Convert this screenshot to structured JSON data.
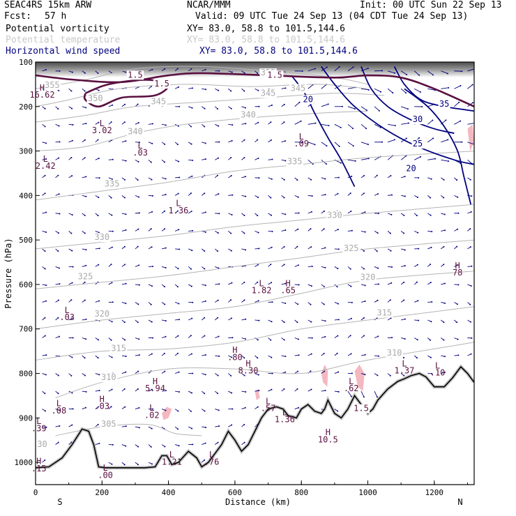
{
  "header": {
    "model": "SEAC4RS 15km ARW",
    "org": "NCAR/MMM",
    "init": "Init: 00 UTC Sun 22 Sep 13",
    "fcst_label": "Fcst:",
    "fcst_value": "57 h",
    "valid": "Valid: 09 UTC Tue 24 Sep 13 (04 CDT Tue 24 Sep 13)"
  },
  "fields": [
    {
      "name": "Potential vorticity",
      "xy": "XY=  83.0, 58.8 to 101.5,144.6",
      "color": "#000000"
    },
    {
      "name": "Potential temperature",
      "xy": "XY=  83.0, 58.8 to 101.5,144.6",
      "color": "#c8c8c8"
    },
    {
      "name": "Horizontal wind speed",
      "xy": "XY=  83.0, 58.8 to 101.5,144.6",
      "color": "#000080"
    }
  ],
  "colors": {
    "pv": "#5a1040",
    "theta": "#b4b4b4",
    "wind": "#000080",
    "terrain": "#000000",
    "pink": "#f4b8c0"
  },
  "chart_data": {
    "type": "cross-section",
    "xlabel": "Distance (km)",
    "ylabel": "Pressure (hPa)",
    "xlim": [
      0,
      1320
    ],
    "ylim": [
      1050,
      100
    ],
    "x_ticks": [
      "0",
      "200",
      "400",
      "600",
      "800",
      "1000",
      "1200"
    ],
    "x_tick_values": [
      0,
      200,
      400,
      600,
      800,
      1000,
      1200
    ],
    "y_ticks": [
      "100",
      "200",
      "300",
      "400",
      "500",
      "600",
      "700",
      "800",
      "900",
      "1000"
    ],
    "y_tick_values": [
      100,
      200,
      300,
      400,
      500,
      600,
      700,
      800,
      900,
      1000
    ],
    "end_left": "S",
    "end_right": "N",
    "terrain": [
      [
        0,
        1012
      ],
      [
        40,
        1010
      ],
      [
        80,
        990
      ],
      [
        110,
        960
      ],
      [
        140,
        925
      ],
      [
        160,
        930
      ],
      [
        175,
        960
      ],
      [
        190,
        1010
      ],
      [
        210,
        1012
      ],
      [
        260,
        1012
      ],
      [
        330,
        1012
      ],
      [
        360,
        1010
      ],
      [
        380,
        985
      ],
      [
        395,
        985
      ],
      [
        410,
        1005
      ],
      [
        430,
        1000
      ],
      [
        460,
        975
      ],
      [
        485,
        990
      ],
      [
        500,
        1010
      ],
      [
        520,
        1000
      ],
      [
        545,
        975
      ],
      [
        560,
        960
      ],
      [
        580,
        930
      ],
      [
        600,
        950
      ],
      [
        620,
        975
      ],
      [
        640,
        960
      ],
      [
        660,
        930
      ],
      [
        680,
        900
      ],
      [
        700,
        880
      ],
      [
        725,
        875
      ],
      [
        745,
        880
      ],
      [
        760,
        895
      ],
      [
        785,
        900
      ],
      [
        800,
        880
      ],
      [
        820,
        870
      ],
      [
        840,
        885
      ],
      [
        860,
        890
      ],
      [
        870,
        880
      ],
      [
        880,
        860
      ],
      [
        900,
        890
      ],
      [
        920,
        900
      ],
      [
        940,
        880
      ],
      [
        960,
        850
      ],
      [
        980,
        870
      ],
      [
        1000,
        890
      ],
      [
        1015,
        880
      ],
      [
        1030,
        860
      ],
      [
        1060,
        835
      ],
      [
        1090,
        818
      ],
      [
        1110,
        812
      ],
      [
        1130,
        805
      ],
      [
        1155,
        800
      ],
      [
        1175,
        808
      ],
      [
        1200,
        830
      ],
      [
        1230,
        830
      ],
      [
        1255,
        810
      ],
      [
        1280,
        785
      ],
      [
        1300,
        800
      ],
      [
        1320,
        820
      ]
    ],
    "theta_contours": [
      {
        "label": "355",
        "points": [
          [
            0,
            160
          ],
          [
            150,
            140
          ],
          [
            300,
            115
          ],
          [
            500,
            110
          ],
          [
            700,
            120
          ],
          [
            900,
            135
          ],
          [
            1000,
            150
          ]
        ]
      },
      {
        "label": "350",
        "points": [
          [
            0,
            200
          ],
          [
            100,
            185
          ],
          [
            250,
            160
          ],
          [
            450,
            150
          ],
          [
            650,
            155
          ],
          [
            850,
            150
          ],
          [
            1000,
            160
          ]
        ]
      },
      {
        "label": "345",
        "points": [
          [
            0,
            235
          ],
          [
            150,
            220
          ],
          [
            300,
            200
          ],
          [
            500,
            190
          ],
          [
            700,
            180
          ],
          [
            900,
            170
          ],
          [
            1050,
            175
          ]
        ]
      },
      {
        "label": "340",
        "points": [
          [
            0,
            300
          ],
          [
            150,
            290
          ],
          [
            300,
            260
          ],
          [
            450,
            240
          ],
          [
            650,
            225
          ],
          [
            850,
            215
          ],
          [
            1000,
            210
          ]
        ]
      },
      {
        "label": "335",
        "points": [
          [
            0,
            410
          ],
          [
            200,
            390
          ],
          [
            400,
            370
          ],
          [
            600,
            345
          ],
          [
            800,
            330
          ],
          [
            1000,
            315
          ],
          [
            1320,
            300
          ]
        ]
      },
      {
        "label": "330",
        "points": [
          [
            0,
            520
          ],
          [
            200,
            505
          ],
          [
            400,
            490
          ],
          [
            600,
            470
          ],
          [
            800,
            455
          ],
          [
            1000,
            440
          ],
          [
            1320,
            420
          ]
        ]
      },
      {
        "label": "325",
        "points": [
          [
            0,
            610
          ],
          [
            200,
            595
          ],
          [
            400,
            580
          ],
          [
            600,
            560
          ],
          [
            800,
            540
          ],
          [
            1000,
            520
          ],
          [
            1320,
            500
          ]
        ]
      },
      {
        "label": "320",
        "points": [
          [
            0,
            700
          ],
          [
            200,
            680
          ],
          [
            400,
            665
          ],
          [
            600,
            650
          ],
          [
            800,
            620
          ],
          [
            1000,
            590
          ],
          [
            1320,
            570
          ]
        ]
      },
      {
        "label": "315",
        "points": [
          [
            0,
            770
          ],
          [
            200,
            750
          ],
          [
            400,
            745
          ],
          [
            600,
            730
          ],
          [
            800,
            700
          ],
          [
            1000,
            680
          ],
          [
            1320,
            650
          ]
        ]
      },
      {
        "label": "310",
        "points": [
          [
            60,
            855
          ],
          [
            200,
            820
          ],
          [
            400,
            790
          ],
          [
            600,
            790
          ],
          [
            800,
            800
          ],
          [
            1000,
            770
          ],
          [
            1320,
            730
          ]
        ]
      },
      {
        "label": "305",
        "points": [
          [
            60,
            940
          ],
          [
            200,
            920
          ],
          [
            340,
            915
          ],
          [
            420,
            935
          ],
          [
            500,
            940
          ]
        ]
      }
    ],
    "wind_contours": [
      {
        "label": "20",
        "points": [
          [
            770,
            130
          ],
          [
            810,
            170
          ],
          [
            840,
            215
          ],
          [
            880,
            270
          ],
          [
            920,
            320
          ],
          [
            960,
            380
          ]
        ]
      },
      {
        "label": "25",
        "points": [
          [
            860,
            110
          ],
          [
            900,
            150
          ],
          [
            960,
            200
          ],
          [
            1050,
            250
          ],
          [
            1150,
            290
          ],
          [
            1260,
            320
          ],
          [
            1320,
            330
          ]
        ]
      },
      {
        "label": "30",
        "points": [
          [
            980,
            110
          ],
          [
            1010,
            160
          ],
          [
            1060,
            200
          ],
          [
            1130,
            230
          ],
          [
            1200,
            250
          ],
          [
            1260,
            260
          ]
        ]
      },
      {
        "label": "35",
        "points": [
          [
            1080,
            110
          ],
          [
            1110,
            150
          ],
          [
            1160,
            185
          ],
          [
            1230,
            200
          ],
          [
            1320,
            210
          ]
        ]
      },
      {
        "label": "20",
        "points": [
          [
            1110,
            160
          ],
          [
            1180,
            200
          ],
          [
            1230,
            245
          ],
          [
            1270,
            300
          ],
          [
            1290,
            360
          ],
          [
            1310,
            420
          ]
        ]
      }
    ],
    "pv_contours": [
      {
        "label": "1.5",
        "points": [
          [
            0,
            130
          ],
          [
            120,
            140
          ],
          [
            260,
            145
          ],
          [
            400,
            130
          ],
          [
            500,
            125
          ],
          [
            700,
            130
          ],
          [
            900,
            135
          ],
          [
            1000,
            130
          ],
          [
            1100,
            135
          ],
          [
            1200,
            160
          ],
          [
            1320,
            200
          ]
        ]
      },
      {
        "label": "1.5",
        "points": [
          [
            150,
            170
          ],
          [
            220,
            150
          ],
          [
            330,
            140
          ],
          [
            400,
            150
          ],
          [
            360,
            175
          ],
          [
            260,
            180
          ],
          [
            190,
            200
          ],
          [
            150,
            185
          ],
          [
            150,
            170
          ]
        ]
      }
    ],
    "pv_labels": [
      {
        "label": "1.5",
        "x": 300,
        "p": 135
      },
      {
        "label": "1.5",
        "x": 380,
        "p": 155
      },
      {
        "label": "1.5",
        "x": 720,
        "p": 135
      },
      {
        "label": "1.5",
        "x": 980,
        "p": 885
      }
    ],
    "extrema": [
      {
        "type": "H",
        "value": "16.62",
        "x": 20,
        "p": 180
      },
      {
        "type": "L",
        "value": "3.02",
        "x": 200,
        "p": 260
      },
      {
        "type": "L",
        "value": ".03",
        "x": 315,
        "p": 310
      },
      {
        "type": "L",
        "value": "2.42",
        "x": 30,
        "p": 340
      },
      {
        "type": "L",
        "value": ".09",
        "x": 800,
        "p": 290
      },
      {
        "type": "L",
        "value": "1.36",
        "x": 430,
        "p": 440
      },
      {
        "type": "L",
        "value": "1.82",
        "x": 680,
        "p": 620
      },
      {
        "type": "H",
        "value": ".65",
        "x": 760,
        "p": 620
      },
      {
        "type": "H",
        "value": "78",
        "x": 1270,
        "p": 580
      },
      {
        "type": "L",
        "value": ".03",
        "x": 95,
        "p": 680
      },
      {
        "type": "H",
        "value": ".80",
        "x": 600,
        "p": 770
      },
      {
        "type": "H",
        "value": "8.30",
        "x": 640,
        "p": 800
      },
      {
        "type": "H",
        "value": "5.94",
        "x": 360,
        "p": 840
      },
      {
        "type": "L",
        "value": ".62",
        "x": 950,
        "p": 840
      },
      {
        "type": "L",
        "value": "1.37",
        "x": 1110,
        "p": 800
      },
      {
        "type": "L",
        "value": ".10",
        "x": 1210,
        "p": 805
      },
      {
        "type": "L",
        "value": ".08",
        "x": 70,
        "p": 890
      },
      {
        "type": "H",
        "value": ".03",
        "x": 200,
        "p": 880
      },
      {
        "type": "L",
        "value": ".02",
        "x": 350,
        "p": 900
      },
      {
        "type": "L",
        "value": ".57",
        "x": 700,
        "p": 885
      },
      {
        "type": "L",
        "value": "1.36",
        "x": 750,
        "p": 910
      },
      {
        "type": "H",
        "value": "10.5",
        "x": 880,
        "p": 955
      },
      {
        "type": "L",
        "value": ".39",
        "x": 10,
        "p": 930
      },
      {
        "type": "L",
        "value": "1.21",
        "x": 410,
        "p": 1005
      },
      {
        "type": "L",
        "value": ".76",
        "x": 530,
        "p": 1005
      },
      {
        "type": "H",
        "value": ".15",
        "x": 10,
        "p": 1020
      },
      {
        "type": "L",
        "value": ".00",
        "x": 210,
        "p": 1035
      }
    ],
    "theta_label_positions": [
      {
        "label": "355",
        "x": 50,
        "p": 158
      },
      {
        "label": "350",
        "x": 180,
        "p": 188
      },
      {
        "label": "345",
        "x": 370,
        "p": 195
      },
      {
        "label": "340",
        "x": 300,
        "p": 262
      },
      {
        "label": "335",
        "x": 230,
        "p": 380
      },
      {
        "label": "330",
        "x": 200,
        "p": 500
      },
      {
        "label": "325",
        "x": 150,
        "p": 588
      },
      {
        "label": "320",
        "x": 200,
        "p": 672
      },
      {
        "label": "315",
        "x": 250,
        "p": 750
      },
      {
        "label": "310",
        "x": 220,
        "p": 815
      },
      {
        "label": "305",
        "x": 220,
        "p": 920
      },
      {
        "label": "355",
        "x": 700,
        "p": 130
      },
      {
        "label": "345",
        "x": 700,
        "p": 176
      },
      {
        "label": "340",
        "x": 640,
        "p": 225
      },
      {
        "label": "335",
        "x": 780,
        "p": 330
      },
      {
        "label": "330",
        "x": 900,
        "p": 450
      },
      {
        "label": "325",
        "x": 950,
        "p": 525
      },
      {
        "label": "320",
        "x": 1000,
        "p": 590
      },
      {
        "label": "315",
        "x": 1050,
        "p": 670
      },
      {
        "label": "310",
        "x": 1080,
        "p": 760
      },
      {
        "label": "345",
        "x": 790,
        "p": 165
      },
      {
        "label": "30",
        "x": 20,
        "p": 965
      }
    ],
    "wind_label_positions": [
      {
        "label": "20",
        "x": 820,
        "p": 190
      },
      {
        "label": "25",
        "x": 1150,
        "p": 290
      },
      {
        "label": "30",
        "x": 1150,
        "p": 235
      },
      {
        "label": "35",
        "x": 1230,
        "p": 200
      },
      {
        "label": "20",
        "x": 1130,
        "p": 345
      }
    ],
    "pink_patches": [
      [
        [
          860,
          800
        ],
        [
          870,
          780
        ],
        [
          880,
          795
        ],
        [
          878,
          830
        ],
        [
          865,
          820
        ]
      ],
      [
        [
          960,
          795
        ],
        [
          975,
          780
        ],
        [
          990,
          800
        ],
        [
          985,
          840
        ],
        [
          970,
          830
        ]
      ],
      [
        [
          660,
          840
        ],
        [
          670,
          835
        ],
        [
          675,
          855
        ],
        [
          665,
          860
        ]
      ],
      [
        [
          380,
          890
        ],
        [
          395,
          875
        ],
        [
          410,
          880
        ],
        [
          400,
          900
        ],
        [
          385,
          905
        ]
      ],
      [
        [
          1300,
          250
        ],
        [
          1315,
          240
        ],
        [
          1320,
          280
        ],
        [
          1308,
          300
        ]
      ],
      [
        [
          690,
          910
        ],
        [
          700,
          905
        ],
        [
          706,
          915
        ],
        [
          695,
          918
        ]
      ],
      [
        [
          545,
          980
        ],
        [
          558,
          970
        ],
        [
          565,
          985
        ],
        [
          552,
          995
        ]
      ]
    ],
    "wind_vectors": {
      "u": 6,
      "v": 4
    }
  }
}
